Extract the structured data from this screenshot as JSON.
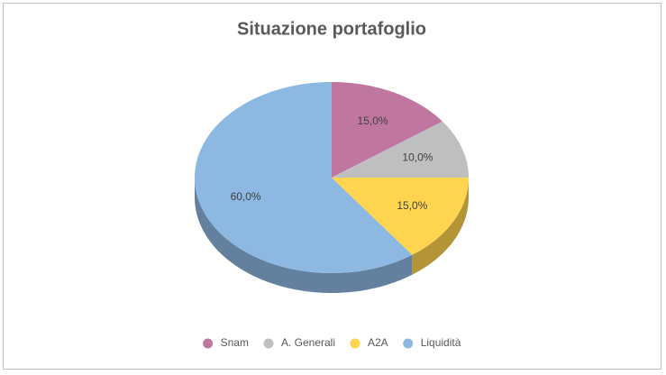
{
  "chart_data": {
    "type": "pie3d",
    "title": "Situazione portafoglio",
    "categories": [
      "Snam",
      "A. Generali",
      "A2A",
      "Liquidità"
    ],
    "values": [
      15,
      10,
      15,
      60
    ],
    "value_labels": [
      "15,0%",
      "10,0%",
      "15,0%",
      "60,0%"
    ],
    "colors": [
      "#c0779f",
      "#bfbfbf",
      "#ffd54f",
      "#8db8e2"
    ],
    "legend": "bottom"
  }
}
